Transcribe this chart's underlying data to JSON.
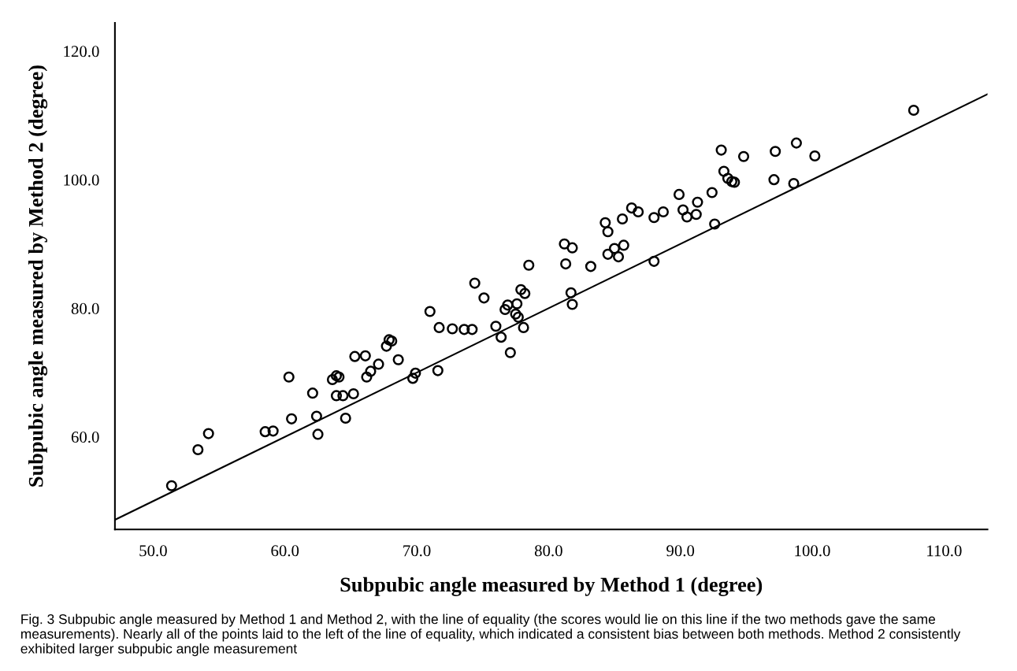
{
  "chart_data": {
    "type": "scatter",
    "xlabel": "Subpubic angle measured by Method 1 (degree)",
    "ylabel": "Subpubic angle measured by Method 2 (degree)",
    "annotations": [
      "Fig. 3 Subpubic angle measured by Method 1 and Method 2, with the line of equality (the scores would lie on this line if the two methods gave the same measurements). Nearly all of the points laid to the left of the line of equality, which indicated a consistent bias between both methods. Method 2 consistently exhibited larger subpubic angle measurement"
    ],
    "xlim": [
      47.1,
      113.3
    ],
    "ylim": [
      45.6,
      124.4
    ],
    "xticks": [
      {
        "value": 50,
        "label": "50.0"
      },
      {
        "value": 60,
        "label": "60.0"
      },
      {
        "value": 70,
        "label": "70.0"
      },
      {
        "value": 80,
        "label": "80.0"
      },
      {
        "value": 90,
        "label": "90.0"
      },
      {
        "value": 100,
        "label": "100.0"
      },
      {
        "value": 110,
        "label": "110.0"
      }
    ],
    "yticks": [
      {
        "value": 60,
        "label": "60.0"
      },
      {
        "value": 80,
        "label": "80.0"
      },
      {
        "value": 100,
        "label": "100.0"
      },
      {
        "value": 120,
        "label": "120.0"
      }
    ],
    "grid": false,
    "legend": false,
    "marker": "circle",
    "series": [
      {
        "color": "#000000",
        "x": [
          51.4,
          53.4,
          54.2,
          58.5,
          59.1,
          60.3,
          60.5,
          62.1,
          62.4,
          62.5,
          63.6,
          63.9,
          64.1,
          63.9,
          64.4,
          64.6,
          65.2,
          65.3,
          66.1,
          66.2,
          66.5,
          67.1,
          67.7,
          67.9,
          68.1,
          68.6,
          69.7,
          69.9,
          71.0,
          71.6,
          71.7,
          72.7,
          73.6,
          74.2,
          74.4,
          75.1,
          76.0,
          76.4,
          77.1,
          76.7,
          76.9,
          77.6,
          77.5,
          77.7,
          78.1,
          77.9,
          78.2,
          78.5,
          81.2,
          81.8,
          81.3,
          81.7,
          81.8,
          83.2,
          84.3,
          84.5,
          84.5,
          85.0,
          85.3,
          85.7,
          85.6,
          86.3,
          86.8,
          88.0,
          88.0,
          88.7,
          89.9,
          90.2,
          90.5,
          91.2,
          91.3,
          92.4,
          92.6,
          93.1,
          93.3,
          93.6,
          93.9,
          94.1,
          94.8,
          97.2,
          97.1,
          98.8,
          98.6,
          100.2,
          107.7
        ],
        "values": [
          52.4,
          58.0,
          60.5,
          60.8,
          60.9,
          69.3,
          62.8,
          66.8,
          63.2,
          60.4,
          68.9,
          69.5,
          69.3,
          66.4,
          66.4,
          62.9,
          66.7,
          72.5,
          72.6,
          69.3,
          70.2,
          71.3,
          74.1,
          75.1,
          74.9,
          72.0,
          69.1,
          69.9,
          79.5,
          70.3,
          77.0,
          76.8,
          76.7,
          76.7,
          83.9,
          81.6,
          77.2,
          75.5,
          73.1,
          79.8,
          80.5,
          80.7,
          79.1,
          78.6,
          77.0,
          82.9,
          82.3,
          86.7,
          90.0,
          89.4,
          86.9,
          82.4,
          80.6,
          86.5,
          93.3,
          91.9,
          88.4,
          89.3,
          88.0,
          89.8,
          93.9,
          95.6,
          95.0,
          94.1,
          87.3,
          95.0,
          97.7,
          95.3,
          94.2,
          94.6,
          96.5,
          98.0,
          93.1,
          104.6,
          101.3,
          100.2,
          99.7,
          99.6,
          103.6,
          104.4,
          100.0,
          105.7,
          99.4,
          103.7,
          110.8
        ]
      },
      {
        "type": "line",
        "color": "#000000",
        "line_style": "solid",
        "marker": "none",
        "x": [
          47.1,
          113.3
        ],
        "values": [
          47.1,
          113.3
        ]
      }
    ]
  }
}
